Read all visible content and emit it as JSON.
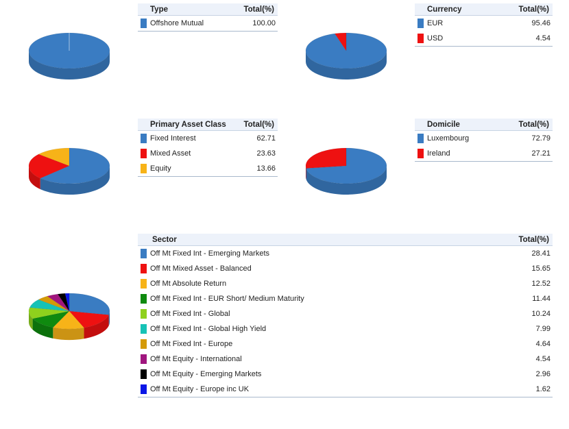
{
  "chart_data": [
    {
      "type": "pie",
      "title": "Type",
      "header": {
        "name": "Type",
        "total": "Total(%)"
      },
      "slices": [
        {
          "label": "Offshore Mutual",
          "value": 100.0,
          "display": "100.00",
          "color": "#3a7cc2"
        }
      ]
    },
    {
      "type": "pie",
      "title": "Currency",
      "header": {
        "name": "Currency",
        "total": "Total(%)"
      },
      "slices": [
        {
          "label": "EUR",
          "value": 95.46,
          "display": "95.46",
          "color": "#3a7cc2"
        },
        {
          "label": "USD",
          "value": 4.54,
          "display": "4.54",
          "color": "#ee1111"
        }
      ]
    },
    {
      "type": "pie",
      "title": "Primary Asset Class",
      "header": {
        "name": "Primary Asset Class",
        "total": "Total(%)"
      },
      "slices": [
        {
          "label": "Fixed Interest",
          "value": 62.71,
          "display": "62.71",
          "color": "#3a7cc2"
        },
        {
          "label": "Mixed Asset",
          "value": 23.63,
          "display": "23.63",
          "color": "#ee1111"
        },
        {
          "label": "Equity",
          "value": 13.66,
          "display": "13.66",
          "color": "#f7b318"
        }
      ]
    },
    {
      "type": "pie",
      "title": "Domicile",
      "header": {
        "name": "Domicile",
        "total": "Total(%)"
      },
      "slices": [
        {
          "label": "Luxembourg",
          "value": 72.79,
          "display": "72.79",
          "color": "#3a7cc2"
        },
        {
          "label": "Ireland",
          "value": 27.21,
          "display": "27.21",
          "color": "#ee1111"
        }
      ]
    },
    {
      "type": "pie",
      "title": "Sector",
      "header": {
        "name": "Sector",
        "total": "Total(%)"
      },
      "slices": [
        {
          "label": "Off Mt Fixed Int - Emerging Markets",
          "value": 28.41,
          "display": "28.41",
          "color": "#3a7cc2"
        },
        {
          "label": "Off Mt Mixed Asset - Balanced",
          "value": 15.65,
          "display": "15.65",
          "color": "#ee1111"
        },
        {
          "label": "Off Mt Absolute Return",
          "value": 12.52,
          "display": "12.52",
          "color": "#f7b318"
        },
        {
          "label": "Off Mt Fixed Int - EUR Short/ Medium Maturity",
          "value": 11.44,
          "display": "11.44",
          "color": "#0f8a0f"
        },
        {
          "label": "Off Mt Fixed Int - Global",
          "value": 10.24,
          "display": "10.24",
          "color": "#8fd11d"
        },
        {
          "label": "Off Mt Fixed Int - Global High Yield",
          "value": 7.99,
          "display": "7.99",
          "color": "#16c2b6"
        },
        {
          "label": "Off Mt Fixed Int - Europe",
          "value": 4.64,
          "display": "4.64",
          "color": "#d49a08"
        },
        {
          "label": "Off Mt Equity - International",
          "value": 4.54,
          "display": "4.54",
          "color": "#a0167e"
        },
        {
          "label": "Off Mt Equity - Emerging Markets",
          "value": 2.96,
          "display": "2.96",
          "color": "#000000"
        },
        {
          "label": "Off Mt Equity - Europe inc UK",
          "value": 1.62,
          "display": "1.62",
          "color": "#0a16e6"
        }
      ]
    }
  ]
}
